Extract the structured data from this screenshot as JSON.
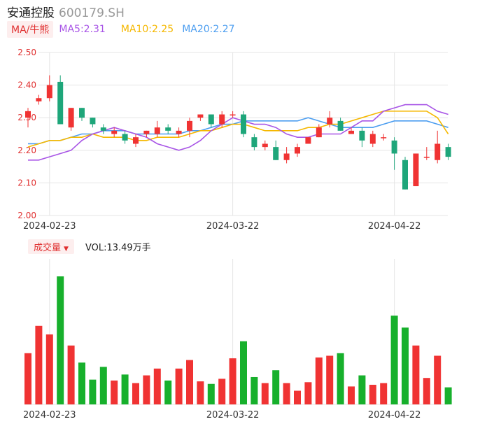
{
  "header": {
    "name": "安通控股",
    "code": "600179.SH"
  },
  "ma_legend": {
    "tag": "MA/牛熊",
    "items": [
      {
        "label": "MA5:2.31",
        "color": "#a855e6"
      },
      {
        "label": "MA10:2.25",
        "color": "#f5b800"
      },
      {
        "label": "MA20:2.27",
        "color": "#4d9ef0"
      }
    ]
  },
  "volume_legend": {
    "tag": "成交量",
    "text": "VOL:13.49万手"
  },
  "colors": {
    "up": "#f03333",
    "down": "#1ea67a",
    "vol_down": "#17b02c",
    "grid": "#e5e5e5"
  },
  "chart_data": [
    {
      "type": "candlestick",
      "y_ticks": [
        "2.50",
        "2.40",
        "2.30",
        "2.20",
        "2.10",
        "2.00"
      ],
      "ylim": [
        2.0,
        2.5
      ],
      "x_labels": [
        {
          "label": "2024-02-23",
          "index": 2
        },
        {
          "label": "2024-03-22",
          "index": 19
        },
        {
          "label": "2024-04-22",
          "index": 34
        }
      ],
      "candles": [
        {
          "o": 2.3,
          "c": 2.32,
          "h": 2.33,
          "l": 2.27
        },
        {
          "o": 2.35,
          "c": 2.36,
          "h": 2.37,
          "l": 2.34
        },
        {
          "o": 2.36,
          "c": 2.4,
          "h": 2.43,
          "l": 2.35
        },
        {
          "o": 2.41,
          "c": 2.28,
          "h": 2.43,
          "l": 2.28
        },
        {
          "o": 2.27,
          "c": 2.33,
          "h": 2.33,
          "l": 2.26
        },
        {
          "o": 2.33,
          "c": 2.3,
          "h": 2.33,
          "l": 2.29
        },
        {
          "o": 2.3,
          "c": 2.28,
          "h": 2.3,
          "l": 2.27
        },
        {
          "o": 2.27,
          "c": 2.26,
          "h": 2.28,
          "l": 2.25
        },
        {
          "o": 2.25,
          "c": 2.26,
          "h": 2.27,
          "l": 2.24
        },
        {
          "o": 2.25,
          "c": 2.23,
          "h": 2.26,
          "l": 2.22
        },
        {
          "o": 2.22,
          "c": 2.24,
          "h": 2.25,
          "l": 2.21
        },
        {
          "o": 2.25,
          "c": 2.26,
          "h": 2.26,
          "l": 2.24
        },
        {
          "o": 2.25,
          "c": 2.27,
          "h": 2.29,
          "l": 2.24
        },
        {
          "o": 2.27,
          "c": 2.26,
          "h": 2.28,
          "l": 2.25
        },
        {
          "o": 2.25,
          "c": 2.26,
          "h": 2.27,
          "l": 2.24
        },
        {
          "o": 2.26,
          "c": 2.29,
          "h": 2.3,
          "l": 2.24
        },
        {
          "o": 2.3,
          "c": 2.31,
          "h": 2.31,
          "l": 2.29
        },
        {
          "o": 2.31,
          "c": 2.28,
          "h": 2.31,
          "l": 2.27
        },
        {
          "o": 2.28,
          "c": 2.31,
          "h": 2.32,
          "l": 2.27
        },
        {
          "o": 2.31,
          "c": 2.31,
          "h": 2.32,
          "l": 2.3
        },
        {
          "o": 2.31,
          "c": 2.25,
          "h": 2.32,
          "l": 2.24
        },
        {
          "o": 2.24,
          "c": 2.21,
          "h": 2.25,
          "l": 2.2
        },
        {
          "o": 2.21,
          "c": 2.22,
          "h": 2.23,
          "l": 2.2
        },
        {
          "o": 2.21,
          "c": 2.17,
          "h": 2.23,
          "l": 2.17
        },
        {
          "o": 2.17,
          "c": 2.19,
          "h": 2.21,
          "l": 2.16
        },
        {
          "o": 2.19,
          "c": 2.21,
          "h": 2.22,
          "l": 2.18
        },
        {
          "o": 2.22,
          "c": 2.24,
          "h": 2.24,
          "l": 2.22
        },
        {
          "o": 2.24,
          "c": 2.27,
          "h": 2.28,
          "l": 2.24
        },
        {
          "o": 2.28,
          "c": 2.3,
          "h": 2.32,
          "l": 2.27
        },
        {
          "o": 2.29,
          "c": 2.26,
          "h": 2.3,
          "l": 2.26
        },
        {
          "o": 2.25,
          "c": 2.26,
          "h": 2.27,
          "l": 2.25
        },
        {
          "o": 2.26,
          "c": 2.23,
          "h": 2.27,
          "l": 2.21
        },
        {
          "o": 2.22,
          "c": 2.25,
          "h": 2.26,
          "l": 2.21
        },
        {
          "o": 2.24,
          "c": 2.24,
          "h": 2.25,
          "l": 2.23
        },
        {
          "o": 2.23,
          "c": 2.19,
          "h": 2.24,
          "l": 2.14
        },
        {
          "o": 2.17,
          "c": 2.08,
          "h": 2.18,
          "l": 2.08
        },
        {
          "o": 2.09,
          "c": 2.19,
          "h": 2.19,
          "l": 2.09
        },
        {
          "o": 2.18,
          "c": 2.18,
          "h": 2.21,
          "l": 2.17
        },
        {
          "o": 2.17,
          "c": 2.22,
          "h": 2.26,
          "l": 2.16
        },
        {
          "o": 2.21,
          "c": 2.18,
          "h": 2.22,
          "l": 2.17
        }
      ],
      "ma5": [
        2.17,
        2.17,
        2.18,
        2.19,
        2.2,
        2.23,
        2.25,
        2.26,
        2.27,
        2.26,
        2.25,
        2.24,
        2.22,
        2.21,
        2.2,
        2.21,
        2.23,
        2.26,
        2.28,
        2.3,
        2.29,
        2.28,
        2.28,
        2.27,
        2.25,
        2.24,
        2.24,
        2.25,
        2.25,
        2.25,
        2.27,
        2.29,
        2.29,
        2.32,
        2.33,
        2.34,
        2.34,
        2.34,
        2.32,
        2.31
      ],
      "ma10": [
        2.21,
        2.22,
        2.23,
        2.23,
        2.24,
        2.24,
        2.25,
        2.24,
        2.24,
        2.24,
        2.23,
        2.23,
        2.24,
        2.24,
        2.24,
        2.25,
        2.26,
        2.26,
        2.27,
        2.28,
        2.28,
        2.27,
        2.26,
        2.26,
        2.26,
        2.26,
        2.27,
        2.27,
        2.28,
        2.28,
        2.29,
        2.3,
        2.31,
        2.32,
        2.32,
        2.32,
        2.32,
        2.32,
        2.3,
        2.25
      ],
      "ma20": [
        2.22,
        2.22,
        2.23,
        2.23,
        2.24,
        2.25,
        2.25,
        2.26,
        2.26,
        2.26,
        2.25,
        2.25,
        2.25,
        2.25,
        2.25,
        2.26,
        2.26,
        2.27,
        2.28,
        2.28,
        2.29,
        2.29,
        2.29,
        2.29,
        2.29,
        2.29,
        2.3,
        2.29,
        2.28,
        2.27,
        2.27,
        2.27,
        2.27,
        2.28,
        2.29,
        2.29,
        2.29,
        2.29,
        2.28,
        2.27
      ]
    },
    {
      "type": "bar",
      "x_labels": [
        {
          "label": "2024-02-23",
          "index": 2
        },
        {
          "label": "2024-03-22",
          "index": 19
        },
        {
          "label": "2024-04-22",
          "index": 34
        }
      ],
      "volumes": [
        6.0,
        9.2,
        8.2,
        15.0,
        6.9,
        4.9,
        2.9,
        4.4,
        2.8,
        3.5,
        2.5,
        3.4,
        4.2,
        2.8,
        4.2,
        5.2,
        2.7,
        2.4,
        3.0,
        5.4,
        7.4,
        3.2,
        2.5,
        4.0,
        2.5,
        1.6,
        2.6,
        5.5,
        5.7,
        6.0,
        2.1,
        3.4,
        2.3,
        2.5,
        10.4,
        9.0,
        6.9,
        3.1,
        5.7,
        2.0
      ],
      "vol_max": 15.0
    }
  ]
}
